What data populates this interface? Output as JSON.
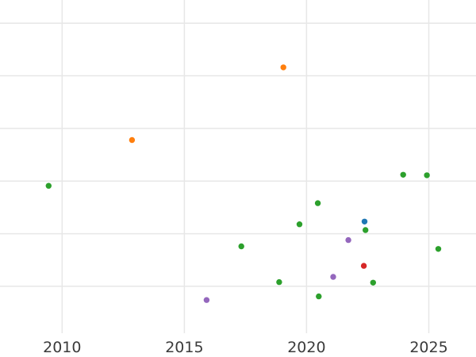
{
  "chart_data": {
    "type": "scatter",
    "title": "",
    "subtitle": "",
    "xlabel": "",
    "ylabel": "",
    "legend": "none",
    "grid": true,
    "background_color": "#ffffff",
    "gridline_color": "#e7e7e7",
    "tick_label_color": "#3b3b3b",
    "tick_label_font_size_px": 19,
    "marker_radius_px": 3.7,
    "x_tick_labels": [
      "2010",
      "2015",
      "2020",
      "2025"
    ],
    "x_ticks": [
      2010,
      2015,
      2020,
      2025
    ],
    "y_tick_labels": [],
    "y_gridlines": [
      0,
      1,
      2,
      3,
      4,
      5
    ],
    "y_units_note": "no y-axis labels visible; y measured in unlabeled gridline units, bottom visible gridline = 0",
    "xlim": [
      2007.46,
      2026.93
    ],
    "ylim": [
      -0.89,
      5.44
    ],
    "series": [
      {
        "name": "green",
        "color": "#2ca02c",
        "points": [
          [
            2009.45,
            1.91
          ],
          [
            2017.33,
            0.76
          ],
          [
            2018.88,
            0.08
          ],
          [
            2019.71,
            1.18
          ],
          [
            2020.46,
            1.58
          ],
          [
            2020.5,
            -0.19
          ],
          [
            2022.41,
            1.07
          ],
          [
            2022.72,
            0.07
          ],
          [
            2023.95,
            2.12
          ],
          [
            2024.92,
            2.11
          ],
          [
            2025.39,
            0.71
          ]
        ]
      },
      {
        "name": "orange",
        "color": "#ff7f0e",
        "points": [
          [
            2012.86,
            2.78
          ],
          [
            2019.05,
            4.16
          ]
        ]
      },
      {
        "name": "purple",
        "color": "#9467bd",
        "points": [
          [
            2015.91,
            -0.26
          ],
          [
            2021.09,
            0.18
          ],
          [
            2021.71,
            0.88
          ]
        ]
      },
      {
        "name": "blue",
        "color": "#1f77b4",
        "points": [
          [
            2022.37,
            1.23
          ]
        ]
      },
      {
        "name": "red",
        "color": "#d62728",
        "points": [
          [
            2022.34,
            0.39
          ]
        ]
      }
    ]
  }
}
